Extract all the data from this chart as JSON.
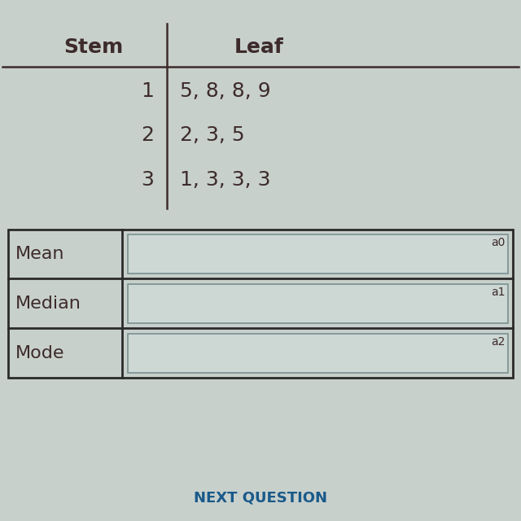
{
  "stem_header": "Stem",
  "leaf_header": "Leaf",
  "stems": [
    "1",
    "2",
    "3"
  ],
  "leaves": [
    "5, 8, 8, 9",
    "2, 3, 5",
    "1, 3, 3, 3"
  ],
  "table_rows": [
    "Mean",
    "Median",
    "Mode"
  ],
  "answer_labels": [
    "a0",
    "a1",
    "a2"
  ],
  "bg_color": "#c8d0cc",
  "text_color": "#3d2b2b",
  "box_bg": "#cdd8d5",
  "box_border": "#7a9090",
  "table_border": "#2a2a2a",
  "bottom_text": "NEXT QUESTION",
  "bottom_text_color": "#1a5a8a"
}
